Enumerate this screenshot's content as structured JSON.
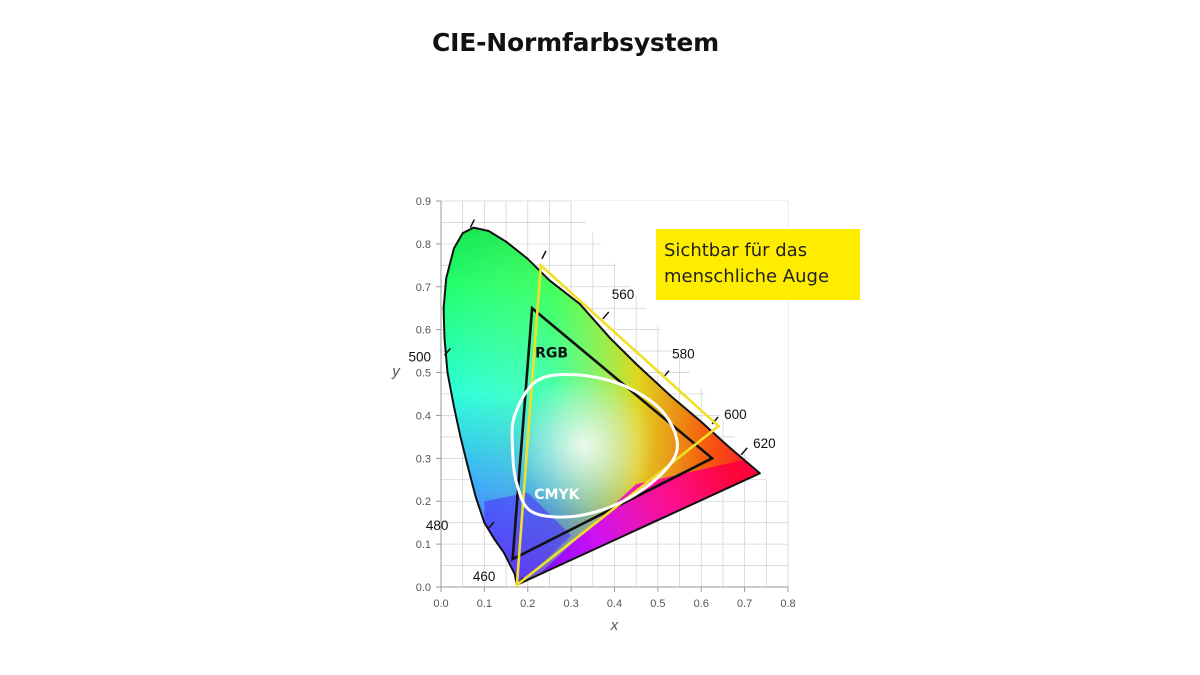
{
  "title": "CIE-Normfarbsystem",
  "callout": {
    "line1": "Sichtbar für das",
    "line2": "menschliche Auge",
    "color": "#ffed00"
  },
  "chart_data": {
    "type": "chromaticity-diagram",
    "xlabel": "x",
    "ylabel": "y",
    "xlim": [
      0,
      0.8
    ],
    "ylim": [
      0,
      0.9
    ],
    "x_ticks": [
      "0.0",
      "0.1",
      "0.2",
      "0.3",
      "0.4",
      "0.5",
      "0.6",
      "0.7",
      "0.8"
    ],
    "y_ticks": [
      "0.0",
      "0.1",
      "0.2",
      "0.3",
      "0.4",
      "0.5",
      "0.6",
      "0.7",
      "0.8",
      "0.9"
    ],
    "grid": true,
    "spectral_locus": [
      [
        0.175,
        0.005
      ],
      [
        0.17,
        0.03
      ],
      [
        0.16,
        0.05
      ],
      [
        0.145,
        0.08
      ],
      [
        0.124,
        0.11
      ],
      [
        0.1,
        0.15
      ],
      [
        0.08,
        0.21
      ],
      [
        0.062,
        0.28
      ],
      [
        0.045,
        0.35
      ],
      [
        0.03,
        0.42
      ],
      [
        0.015,
        0.5
      ],
      [
        0.008,
        0.58
      ],
      [
        0.006,
        0.65
      ],
      [
        0.012,
        0.72
      ],
      [
        0.03,
        0.79
      ],
      [
        0.05,
        0.825
      ],
      [
        0.075,
        0.838
      ],
      [
        0.11,
        0.83
      ],
      [
        0.15,
        0.805
      ],
      [
        0.2,
        0.765
      ],
      [
        0.25,
        0.715
      ],
      [
        0.32,
        0.66
      ],
      [
        0.39,
        0.58
      ],
      [
        0.45,
        0.52
      ],
      [
        0.53,
        0.445
      ],
      [
        0.6,
        0.385
      ],
      [
        0.66,
        0.33
      ],
      [
        0.735,
        0.265
      ]
    ],
    "wavelength_marks": [
      {
        "label": "460",
        "x": 0.175,
        "y": 0.005
      },
      {
        "label": "480",
        "x": 0.108,
        "y": 0.135
      },
      {
        "label": "500",
        "x": 0.008,
        "y": 0.54
      },
      {
        "label": "560",
        "x": 0.373,
        "y": 0.625
      },
      {
        "label": "580",
        "x": 0.512,
        "y": 0.488
      },
      {
        "label": "600",
        "x": 0.625,
        "y": 0.38
      },
      {
        "label": "620",
        "x": 0.692,
        "y": 0.308
      }
    ],
    "unlabeled_marks": [
      {
        "x": 0.07,
        "y": 0.838
      },
      {
        "x": 0.235,
        "y": 0.765
      }
    ],
    "gamuts": [
      {
        "name": "RGB",
        "points": [
          [
            0.21,
            0.65
          ],
          [
            0.625,
            0.3
          ],
          [
            0.165,
            0.065
          ]
        ],
        "color": "#111111"
      },
      {
        "name": "",
        "points": [
          [
            0.23,
            0.75
          ],
          [
            0.64,
            0.375
          ],
          [
            0.175,
            0.005
          ]
        ],
        "color": "#f1e027"
      },
      {
        "name": "CMYK",
        "color": "#ffffff",
        "outline": [
          [
            0.22,
            0.48
          ],
          [
            0.31,
            0.495
          ],
          [
            0.42,
            0.47
          ],
          [
            0.51,
            0.41
          ],
          [
            0.545,
            0.33
          ],
          [
            0.51,
            0.265
          ],
          [
            0.42,
            0.2
          ],
          [
            0.31,
            0.165
          ],
          [
            0.21,
            0.175
          ],
          [
            0.175,
            0.24
          ],
          [
            0.165,
            0.32
          ],
          [
            0.17,
            0.4
          ]
        ]
      }
    ]
  }
}
